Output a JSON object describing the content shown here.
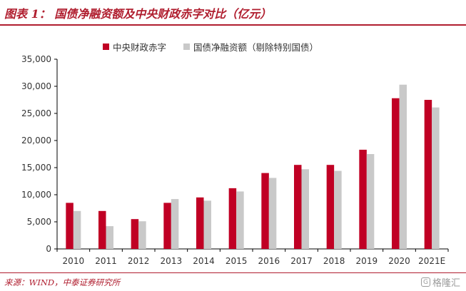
{
  "header": {
    "title": "图表 1： 国债净融资额及中央财政赤字对比（亿元）"
  },
  "footer": {
    "source": "来源：WIND，中泰证券研究所",
    "watermark": "格隆汇"
  },
  "colors": {
    "deficit": "#c00024",
    "bond": "#c9c9c9",
    "accent": "#b01e2f"
  },
  "chart_data": {
    "type": "bar",
    "title": "",
    "xlabel": "",
    "ylabel": "",
    "categories": [
      "2010",
      "2011",
      "2012",
      "2013",
      "2014",
      "2015",
      "2016",
      "2017",
      "2018",
      "2019",
      "2020",
      "2021E"
    ],
    "series": [
      {
        "name": "中央财政赤字",
        "values": [
          8500,
          7000,
          5500,
          8500,
          9500,
          11200,
          14000,
          15500,
          15500,
          18300,
          27800,
          27500
        ]
      },
      {
        "name": "国债净融资额（剔除特别国债）",
        "values": [
          7000,
          4200,
          5100,
          9200,
          8900,
          10600,
          13100,
          14700,
          14400,
          17500,
          30300,
          26100
        ]
      }
    ],
    "ylim": [
      0,
      35000
    ],
    "yticks": [
      0,
      5000,
      10000,
      15000,
      20000,
      25000,
      30000,
      35000
    ],
    "ytick_labels": [
      "0",
      "5,000",
      "10,000",
      "15,000",
      "20,000",
      "25,000",
      "30,000",
      "35,000"
    ],
    "grid": false,
    "legend_position": "top"
  }
}
